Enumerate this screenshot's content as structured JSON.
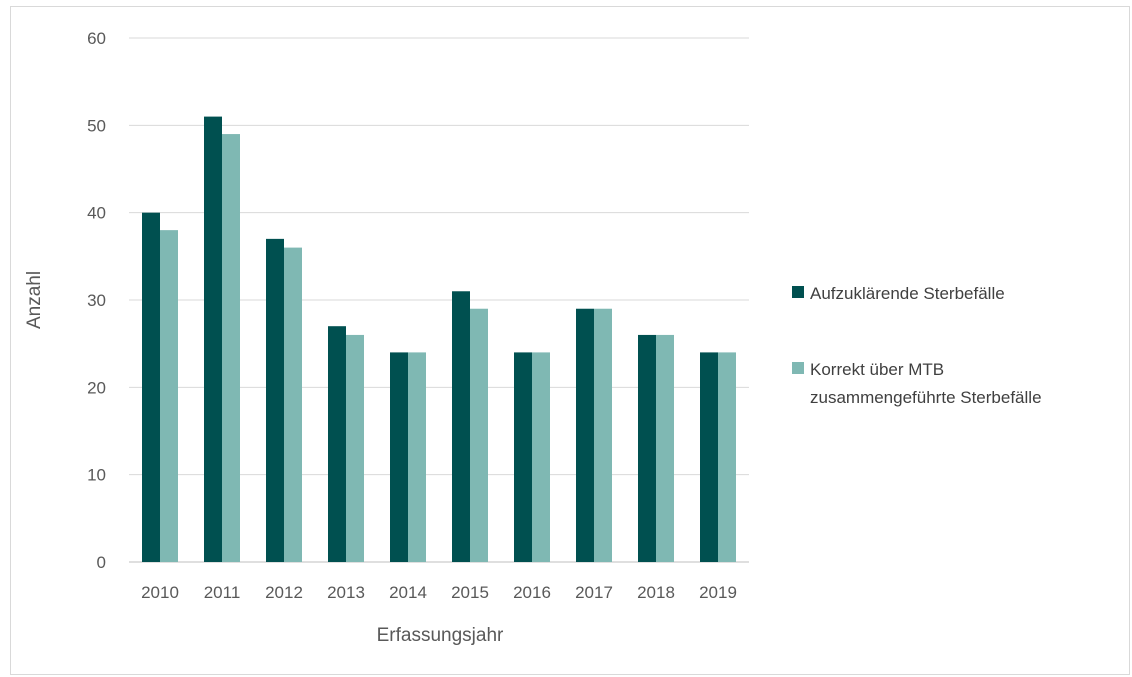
{
  "chart_data": {
    "type": "bar",
    "xlabel": "Erfassungsjahr",
    "ylabel": "Anzahl",
    "categories": [
      "2010",
      "2011",
      "2012",
      "2013",
      "2014",
      "2015",
      "2016",
      "2017",
      "2018",
      "2019"
    ],
    "series": [
      {
        "name": "Aufzuklärende Sterbefälle",
        "color": "#005050",
        "values": [
          40,
          51,
          37,
          27,
          24,
          31,
          24,
          29,
          26,
          24
        ]
      },
      {
        "name": "Korrekt über MTB zusammengeführte Sterbefälle",
        "color": "#7fb8b3",
        "values": [
          38,
          49,
          36,
          26,
          24,
          29,
          24,
          29,
          26,
          24
        ]
      }
    ],
    "ylim": [
      0,
      60
    ],
    "yticks": [
      0,
      10,
      20,
      30,
      40,
      50,
      60
    ],
    "grid": true,
    "legend_position": "right"
  },
  "legend": {
    "item1_label": "Aufzuklärende Sterbefälle",
    "item2_line1": "Korrekt über MTB",
    "item2_line2": "zusammengeführte Sterbefälle"
  }
}
